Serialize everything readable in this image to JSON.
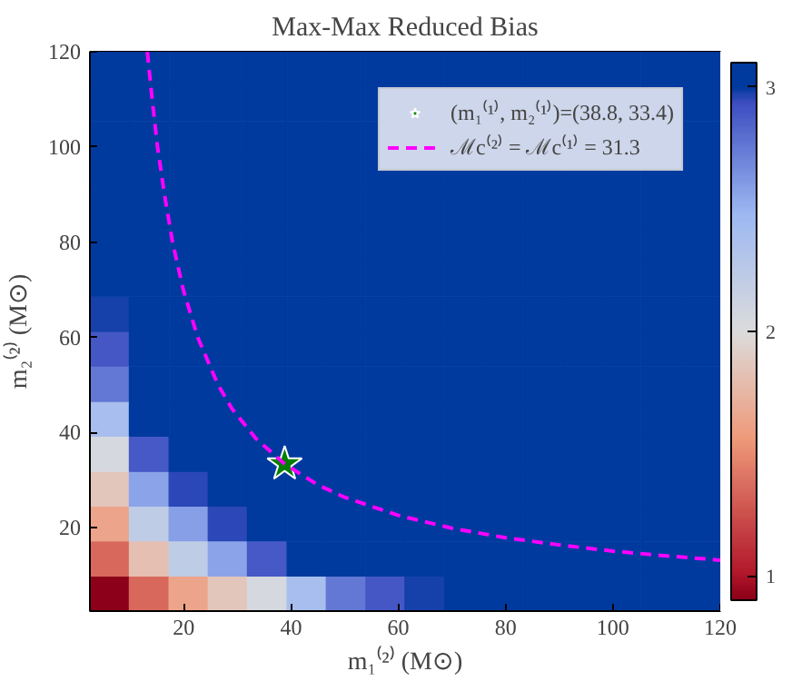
{
  "chart_data": {
    "type": "scatter",
    "title": "Max-Max Reduced Bias",
    "xlabel": "m₁⁽²⁾ (M⊙)",
    "ylabel": "m₂⁽²⁾ (M⊙)",
    "xlim": [
      2.5,
      120
    ],
    "ylim": [
      2.5,
      120
    ],
    "xticks": [
      20,
      40,
      60,
      80,
      100,
      120
    ],
    "yticks": [
      20,
      40,
      60,
      80,
      100,
      120
    ],
    "clim": [
      0.9,
      3.1
    ],
    "cticks": [
      1,
      2,
      3
    ],
    "series": [
      {
        "marker": "square",
        "colors": [
          "#8c0019",
          "#d8685c",
          "#eca48a",
          "#e2c5bb",
          "#d5d8de",
          "#a8beee",
          "#6278d4",
          "#4557c5",
          "#1641ab",
          "#003a9e",
          "#003a9e",
          "#003a9e",
          "#003a9e",
          "#003a9e",
          "#003a9e",
          "#003a9e",
          "#d8685c",
          "#e4bfb2",
          "#bfcce6",
          "#8ba4e9",
          "#4759c6",
          "#003a9e",
          "#003a9e",
          "#003a9e",
          "#003a9e",
          "#003a9e",
          "#003a9e",
          "#003a9e",
          "#003a9e",
          "#003a9e",
          "#003a9e",
          "#003a9e",
          "#eca48a",
          "#bfcce6",
          "#879fe7",
          "#2c47b7",
          "#003a9e",
          "#003a9e",
          "#003a9e",
          "#003a9e",
          "#003a9e",
          "#003a9e",
          "#003a9e",
          "#003a9e",
          "#003a9e",
          "#003a9e",
          "#003a9e",
          "#003a9e",
          "#e2c5bb",
          "#8ba4e9",
          "#2c47b7",
          "#003a9e",
          "#003a9e",
          "#003a9e",
          "#003a9e",
          "#003a9e",
          "#003a9e",
          "#003a9e",
          "#003a9e",
          "#003a9e",
          "#003a9e",
          "#003a9e",
          "#003a9e",
          "#003a9e",
          "#d5d8de",
          "#4759c6",
          "#003a9e",
          "#003a9e",
          "#003a9e",
          "#003a9e",
          "#003a9e",
          "#003a9e",
          "#003a9e",
          "#003a9e",
          "#003a9e",
          "#003a9e",
          "#003a9e",
          "#003a9e",
          "#003a9e",
          "#003a9e",
          "#a8beee",
          "#003a9e",
          "#003a9e",
          "#003a9e",
          "#003a9e",
          "#003a9e",
          "#003a9e",
          "#003a9e",
          "#003a9e",
          "#003a9e",
          "#003a9e",
          "#003a9e",
          "#003a9e",
          "#003a9e",
          "#003a9e",
          "#003a9e",
          "#6278d4",
          "#003a9e",
          "#003a9e",
          "#003a9e",
          "#003a9e",
          "#003a9e",
          "#003a9e",
          "#003a9e",
          "#003a9e",
          "#003a9e",
          "#003a9e",
          "#003a9e",
          "#003a9e",
          "#003a9e",
          "#003a9e",
          "#003a9e",
          "#4557c5",
          "#003a9e",
          "#003a9e",
          "#003a9e",
          "#003a9e",
          "#003a9e",
          "#003a9e",
          "#003a9e",
          "#003a9e",
          "#003a9e",
          "#003a9e",
          "#003a9e",
          "#003a9e",
          "#003a9e",
          "#003a9e",
          "#003a9e",
          "#1641ab",
          "#003a9e",
          "#003a9e",
          "#003a9e",
          "#003a9e",
          "#003a9e",
          "#003a9e",
          "#003a9e",
          "#003a9e",
          "#003a9e",
          "#003a9e",
          "#003a9e",
          "#003a9e",
          "#003a9e",
          "#003a9e",
          "#003a9e",
          "#003a9e",
          "#003a9e",
          "#003a9e",
          "#003a9e",
          "#003a9e",
          "#003a9e",
          "#003a9e",
          "#003a9e",
          "#003a9e",
          "#003a9e",
          "#003a9e",
          "#003a9e",
          "#003a9e",
          "#003a9e",
          "#003a9e",
          "#003a9e",
          "#003a9e",
          "#003a9e",
          "#003a9e",
          "#003a9e",
          "#003a9e",
          "#003a9e",
          "#003a9e",
          "#003a9e",
          "#003a9e",
          "#003a9e",
          "#003a9e",
          "#003a9e",
          "#003a9e",
          "#003a9e",
          "#003a9e",
          "#003a9e",
          "#003a9e",
          "#003a9e",
          "#003a9e",
          "#003a9e",
          "#003a9e",
          "#003a9e",
          "#003a9e",
          "#003a9e",
          "#003a9e",
          "#003a9e",
          "#003a9e",
          "#003a9e",
          "#003a9e",
          "#003a9e",
          "#003a9e",
          "#003a9e",
          "#003a9e",
          "#003a9e",
          "#003a9e",
          "#003a9e",
          "#003a9e",
          "#003a9e",
          "#003a9e",
          "#003a9e",
          "#003a9e",
          "#003a9e",
          "#003a9e",
          "#003a9e",
          "#003a9e",
          "#003a9e",
          "#003a9e",
          "#003a9e",
          "#003a9e",
          "#003a9e",
          "#003a9e",
          "#003a9e",
          "#003a9e",
          "#003a9e",
          "#003a9e",
          "#003a9e",
          "#003a9e",
          "#003a9e",
          "#003a9e",
          "#003a9e",
          "#003a9e",
          "#003a9e",
          "#003a9e",
          "#003a9e",
          "#003a9e",
          "#003a9e",
          "#003a9e",
          "#003a9e",
          "#003a9e",
          "#003a9e",
          "#003a9e",
          "#003a9e",
          "#003a9e",
          "#003a9e",
          "#003a9e",
          "#003a9e",
          "#003a9e",
          "#003a9e",
          "#003a9e",
          "#003a9e",
          "#003a9e",
          "#003a9e"
        ],
        "x": [
          6.2,
          13.5,
          20.9,
          28.2,
          35.5,
          42.9,
          50.2,
          57.6,
          64.9,
          72.3,
          79.6,
          87.0,
          94.3,
          101.6,
          109.0,
          116.3,
          6.2,
          13.5,
          20.9,
          28.2,
          35.5,
          42.9,
          50.2,
          57.6,
          64.9,
          72.3,
          79.6,
          87.0,
          94.3,
          101.6,
          109.0,
          116.3,
          6.2,
          13.5,
          20.9,
          28.2,
          35.5,
          42.9,
          50.2,
          57.6,
          64.9,
          72.3,
          79.6,
          87.0,
          94.3,
          101.6,
          109.0,
          116.3,
          6.2,
          13.5,
          20.9,
          28.2,
          35.5,
          42.9,
          50.2,
          57.6,
          64.9,
          72.3,
          79.6,
          87.0,
          94.3,
          101.6,
          109.0,
          116.3,
          6.2,
          13.5,
          20.9,
          28.2,
          35.5,
          42.9,
          50.2,
          57.6,
          64.9,
          72.3,
          79.6,
          87.0,
          94.3,
          101.6,
          109.0,
          116.3,
          6.2,
          13.5,
          20.9,
          28.2,
          35.5,
          42.9,
          50.2,
          57.6,
          64.9,
          72.3,
          79.6,
          87.0,
          94.3,
          101.6,
          109.0,
          116.3,
          6.2,
          13.5,
          20.9,
          28.2,
          35.5,
          42.9,
          50.2,
          57.6,
          64.9,
          72.3,
          79.6,
          87.0,
          94.3,
          101.6,
          109.0,
          116.3,
          6.2,
          13.5,
          20.9,
          28.2,
          35.5,
          42.9,
          50.2,
          57.6,
          64.9,
          72.3,
          79.6,
          87.0,
          94.3,
          101.6,
          109.0,
          116.3,
          6.2,
          13.5,
          20.9,
          28.2,
          35.5,
          42.9,
          50.2,
          57.6,
          64.9,
          72.3,
          79.6,
          87.0,
          94.3,
          101.6,
          109.0,
          116.3,
          6.2,
          13.5,
          20.9,
          28.2,
          35.5,
          42.9,
          50.2,
          57.6,
          64.9,
          72.3,
          79.6,
          87.0,
          94.3,
          101.6,
          109.0,
          116.3,
          6.2,
          13.5,
          20.9,
          28.2,
          35.5,
          42.9,
          50.2,
          57.6,
          64.9,
          72.3,
          79.6,
          87.0,
          94.3,
          101.6,
          109.0,
          116.3,
          6.2,
          13.5,
          20.9,
          28.2,
          35.5,
          42.9,
          50.2,
          57.6,
          64.9,
          72.3,
          79.6,
          87.0,
          94.3,
          101.6,
          109.0,
          116.3,
          6.2,
          13.5,
          20.9,
          28.2,
          35.5,
          42.9,
          50.2,
          57.6,
          64.9,
          72.3,
          79.6,
          87.0,
          94.3,
          101.6,
          109.0,
          116.3,
          6.2,
          13.5,
          20.9,
          28.2,
          35.5,
          42.9,
          50.2,
          57.6,
          116.3,
          6.2,
          13.5,
          20.9,
          28.2,
          35.5,
          42.9,
          50.2,
          57.6,
          116.3,
          6.2,
          13.5,
          20.9,
          28.2,
          35.5,
          42.9,
          50.2,
          57.6,
          64.9,
          72.3,
          79.6,
          87.0,
          94.3,
          101.6,
          109.0,
          116.3
        ],
        "values": [
          6.2,
          6.2,
          6.2,
          6.2,
          6.2,
          6.2,
          6.2,
          6.2,
          6.2,
          6.2,
          6.2,
          6.2,
          6.2,
          6.2,
          6.2,
          6.2,
          13.5,
          13.5,
          13.5,
          13.5,
          13.5,
          13.5,
          13.5,
          13.5,
          13.5,
          13.5,
          13.5,
          13.5,
          13.5,
          13.5,
          13.5,
          13.5,
          20.9,
          20.9,
          20.9,
          20.9,
          20.9,
          20.9,
          20.9,
          20.9,
          20.9,
          20.9,
          20.9,
          20.9,
          20.9,
          20.9,
          20.9,
          20.9,
          28.2,
          28.2,
          28.2,
          28.2,
          28.2,
          28.2,
          28.2,
          28.2,
          28.2,
          28.2,
          28.2,
          28.2,
          28.2,
          28.2,
          28.2,
          28.2,
          35.5,
          35.5,
          35.5,
          35.5,
          35.5,
          35.5,
          35.5,
          35.5,
          35.5,
          35.5,
          35.5,
          35.5,
          35.5,
          35.5,
          35.5,
          35.5,
          42.9,
          42.9,
          42.9,
          42.9,
          42.9,
          42.9,
          42.9,
          42.9,
          42.9,
          42.9,
          42.9,
          42.9,
          42.9,
          42.9,
          42.9,
          42.9,
          50.2,
          50.2,
          50.2,
          50.2,
          50.2,
          50.2,
          50.2,
          50.2,
          50.2,
          50.2,
          50.2,
          50.2,
          50.2,
          50.2,
          50.2,
          50.2,
          57.6,
          57.6,
          57.6,
          57.6,
          57.6,
          57.6,
          57.6,
          57.6,
          57.6,
          57.6,
          57.6,
          57.6,
          57.6,
          57.6,
          57.6,
          57.6,
          64.9,
          64.9,
          64.9,
          64.9,
          64.9,
          64.9,
          64.9,
          64.9,
          64.9,
          64.9,
          64.9,
          64.9,
          64.9,
          64.9,
          64.9,
          64.9,
          72.3,
          72.3,
          72.3,
          72.3,
          72.3,
          72.3,
          72.3,
          72.3,
          72.3,
          72.3,
          72.3,
          72.3,
          72.3,
          72.3,
          72.3,
          72.3,
          79.6,
          79.6,
          79.6,
          79.6,
          79.6,
          79.6,
          79.6,
          79.6,
          79.6,
          79.6,
          79.6,
          79.6,
          79.6,
          79.6,
          79.6,
          79.6,
          87.0,
          87.0,
          87.0,
          87.0,
          87.0,
          87.0,
          87.0,
          87.0,
          87.0,
          87.0,
          87.0,
          87.0,
          87.0,
          87.0,
          87.0,
          87.0,
          94.3,
          94.3,
          94.3,
          94.3,
          94.3,
          94.3,
          94.3,
          94.3,
          94.3,
          94.3,
          94.3,
          94.3,
          94.3,
          94.3,
          94.3,
          94.3,
          101.6,
          101.6,
          101.6,
          101.6,
          101.6,
          101.6,
          101.6,
          101.6,
          101.6,
          109.0,
          109.0,
          109.0,
          109.0,
          109.0,
          109.0,
          109.0,
          109.0,
          109.0,
          116.3,
          116.3,
          116.3,
          116.3,
          116.3,
          116.3,
          116.3,
          116.3,
          116.3,
          116.3,
          116.3,
          116.3,
          116.3,
          116.3,
          116.3,
          116.3
        ],
        "cvalues": [
          0.9,
          1.35,
          1.63,
          1.85,
          2.05,
          2.4,
          2.76,
          2.9,
          2.98,
          3.05,
          3.1,
          3.1,
          3.1,
          3.1,
          3.1,
          3.1,
          1.35,
          1.81,
          2.22,
          2.57,
          2.89,
          3.1,
          3.1,
          3.1,
          3.1,
          3.1,
          3.1,
          3.1,
          3.1,
          3.1,
          3.1,
          3.1,
          1.63,
          2.22,
          2.59,
          2.96,
          3.1,
          3.1,
          3.1,
          3.1,
          3.1,
          3.1,
          3.1,
          3.1,
          3.1,
          3.1,
          3.1,
          3.1,
          1.85,
          2.57,
          2.96,
          3.1,
          3.1,
          3.1,
          3.1,
          3.1,
          3.1,
          3.1,
          3.1,
          3.1,
          3.1,
          3.1,
          3.1,
          3.1,
          2.05,
          2.89,
          3.1,
          3.1,
          3.1,
          3.1,
          3.1,
          3.1,
          3.1,
          3.1,
          3.1,
          3.1,
          3.1,
          3.1,
          3.1,
          3.1,
          2.4,
          3.1,
          3.1,
          3.1,
          3.1,
          3.1,
          3.1,
          3.1,
          3.1,
          3.1,
          3.1,
          3.1,
          3.1,
          3.1,
          3.1,
          3.1,
          2.76,
          3.1,
          3.1,
          3.1,
          3.1,
          3.1,
          3.1,
          3.1,
          3.1,
          3.1,
          3.1,
          3.1,
          3.1,
          3.1,
          3.1,
          3.1,
          2.9,
          3.1,
          3.1,
          3.1,
          3.1,
          3.1,
          3.1,
          3.1,
          3.1,
          3.1,
          3.1,
          3.1,
          3.1,
          3.1,
          3.1,
          3.1,
          2.98,
          3.1,
          3.1,
          3.1,
          3.1,
          3.1,
          3.1,
          3.1,
          3.1,
          3.1,
          3.1,
          3.1,
          3.1,
          3.1,
          3.1,
          3.1,
          3.05,
          3.1,
          3.1,
          3.1,
          3.1,
          3.1,
          3.1,
          3.1,
          3.1,
          3.1,
          3.1,
          3.1,
          3.1,
          3.1,
          3.1,
          3.1,
          3.1,
          3.1,
          3.1,
          3.1,
          3.1,
          3.1,
          3.1,
          3.1,
          3.1,
          3.1,
          3.1,
          3.1,
          3.1,
          3.1,
          3.1,
          3.1,
          3.1,
          3.1,
          3.1,
          3.1,
          3.1,
          3.1,
          3.1,
          3.1,
          3.1,
          3.1,
          3.1,
          3.1,
          3.1,
          3.1,
          3.1,
          3.1,
          3.1,
          3.1,
          3.1,
          3.1,
          3.1,
          3.1,
          3.1,
          3.1,
          3.1,
          3.1,
          3.1,
          3.1,
          3.1,
          3.1,
          3.1,
          3.1,
          3.1,
          3.1,
          3.1,
          3.1,
          3.1,
          3.1,
          3.1,
          3.1,
          3.1,
          3.1,
          3.1,
          3.1,
          3.1,
          3.1,
          3.1,
          3.1,
          3.1,
          3.1,
          3.1,
          3.1,
          3.1,
          3.1,
          3.1,
          3.1,
          3.1,
          3.1,
          3.1,
          3.1,
          3.1,
          3.1,
          3.1,
          3.1,
          3.1,
          3.1
        ]
      },
      {
        "name": "(m₁⁽¹⁾, m₂⁽¹⁾)=(38.8, 33.4)",
        "type": "scatter",
        "marker": "star",
        "color": "#008000",
        "x": [
          38.8
        ],
        "values": [
          33.4
        ]
      },
      {
        "name": "ℳc⁽²⁾ = ℳc⁽¹⁾ = 31.3",
        "type": "line",
        "line_style": "dashed",
        "color": "#ff00ff",
        "x": [
          13.2,
          14.1,
          15.1,
          16.4,
          17.9,
          19.9,
          22.6,
          26.4,
          29.0,
          33.4,
          38.8,
          45,
          50,
          60,
          70,
          80,
          90,
          100,
          110,
          120
        ],
        "values": [
          120,
          110,
          100,
          90,
          80,
          70,
          60,
          50,
          45,
          38.8,
          33.4,
          29.0,
          26.4,
          22.6,
          19.9,
          17.9,
          16.4,
          15.1,
          14.1,
          13.2
        ]
      }
    ],
    "legend": "top right",
    "grid": false
  }
}
